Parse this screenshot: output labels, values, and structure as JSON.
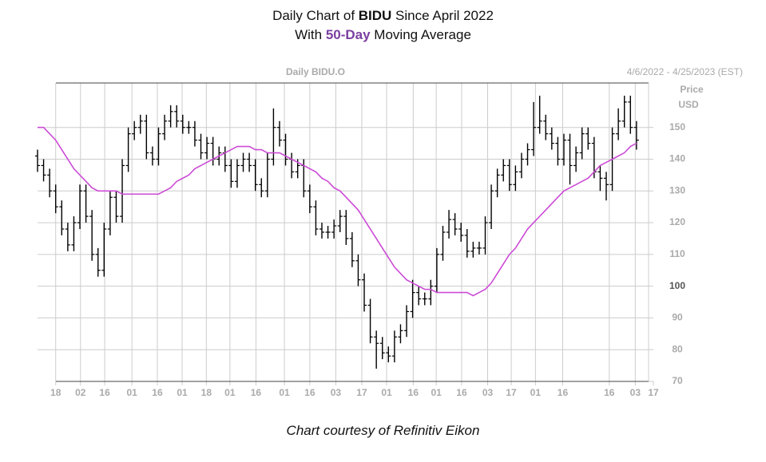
{
  "chart_data": {
    "type": "ohlc",
    "title": [
      "Daily Chart of ",
      "BIDU",
      " Since April 2022"
    ],
    "subtitle": [
      "With ",
      "50-Day",
      " Moving Average"
    ],
    "subtitle_highlight_color": "#7b3fa0",
    "panel_title": "Daily BIDU.O",
    "date_range": "4/6/2022 - 4/25/2023 (EST)",
    "y_label": [
      "Price",
      "USD"
    ],
    "footer": "Chart courtesy of Refinitiv Eikon",
    "xlim": [
      0,
      101
    ],
    "xticks": [
      {
        "value": 3.0,
        "label": "18"
      },
      {
        "value": 7.1,
        "label": "02"
      },
      {
        "value": 11.1,
        "label": "16"
      },
      {
        "value": 15.6,
        "label": "01"
      },
      {
        "value": 19.8,
        "label": "16"
      },
      {
        "value": 23.9,
        "label": "01"
      },
      {
        "value": 27.9,
        "label": "18"
      },
      {
        "value": 31.8,
        "label": "01"
      },
      {
        "value": 36.1,
        "label": "16"
      },
      {
        "value": 40.8,
        "label": "01"
      },
      {
        "value": 45.0,
        "label": "16"
      },
      {
        "value": 49.3,
        "label": "03"
      },
      {
        "value": 53.6,
        "label": "17"
      },
      {
        "value": 57.7,
        "label": "01"
      },
      {
        "value": 62.1,
        "label": "16"
      },
      {
        "value": 65.9,
        "label": "01"
      },
      {
        "value": 70.1,
        "label": "16"
      },
      {
        "value": 74.4,
        "label": "03"
      },
      {
        "value": 78.3,
        "label": "17"
      },
      {
        "value": 82.3,
        "label": "01"
      },
      {
        "value": 86.8,
        "label": "16"
      },
      {
        "value": 94.5,
        "label": "16"
      },
      {
        "value": 98.8,
        "label": "03"
      },
      {
        "value": 101.8,
        "label": "17"
      }
    ],
    "ylim": [
      70,
      164
    ],
    "yticks": [
      70,
      80,
      90,
      100,
      110,
      120,
      130,
      140,
      150
    ],
    "grid": true,
    "series": [
      {
        "type": "ohlc",
        "color": "#000000",
        "open": [
          141,
          138,
          135,
          130,
          125,
          118,
          113,
          120,
          130,
          122,
          110,
          105,
          118,
          128,
          122,
          138,
          148,
          150,
          152,
          142,
          140,
          148,
          152,
          155,
          152,
          150,
          150,
          146,
          142,
          145,
          140,
          142,
          138,
          133,
          138,
          140,
          138,
          132,
          130,
          140,
          150,
          146,
          140,
          136,
          138,
          130,
          125,
          118,
          117,
          117,
          119,
          122,
          115,
          108,
          102,
          94,
          84,
          82,
          79,
          78,
          84,
          86,
          92,
          98,
          96,
          96,
          100,
          110,
          117,
          121,
          118,
          116,
          111,
          112,
          112,
          120,
          130,
          135,
          138,
          132,
          136,
          140,
          143,
          150,
          152,
          148,
          145,
          140,
          146,
          138,
          142,
          148,
          145,
          136,
          134,
          132,
          148,
          152,
          158,
          150
        ],
        "high": [
          143,
          140,
          137,
          132,
          127,
          120,
          122,
          132,
          132,
          124,
          112,
          120,
          130,
          130,
          140,
          150,
          152,
          154,
          154,
          144,
          150,
          154,
          157,
          157,
          154,
          152,
          152,
          148,
          147,
          147,
          144,
          144,
          140,
          140,
          142,
          142,
          140,
          134,
          142,
          156,
          152,
          148,
          142,
          140,
          140,
          132,
          127,
          120,
          119,
          121,
          124,
          124,
          117,
          110,
          104,
          96,
          86,
          84,
          81,
          86,
          88,
          94,
          102,
          100,
          98,
          102,
          112,
          119,
          124,
          123,
          120,
          118,
          114,
          114,
          122,
          132,
          137,
          140,
          140,
          138,
          142,
          145,
          158,
          160,
          154,
          150,
          147,
          148,
          148,
          144,
          150,
          150,
          147,
          138,
          136,
          150,
          156,
          160,
          160,
          152
        ],
        "low": [
          136,
          133,
          128,
          123,
          116,
          111,
          111,
          118,
          120,
          108,
          103,
          103,
          116,
          120,
          120,
          136,
          146,
          148,
          140,
          138,
          138,
          146,
          150,
          150,
          148,
          148,
          144,
          140,
          140,
          138,
          138,
          136,
          131,
          131,
          136,
          136,
          130,
          128,
          128,
          138,
          144,
          138,
          134,
          134,
          128,
          123,
          116,
          115,
          115,
          115,
          117,
          113,
          106,
          100,
          92,
          82,
          74,
          77,
          76,
          76,
          82,
          84,
          90,
          94,
          94,
          94,
          98,
          108,
          115,
          116,
          114,
          109,
          109,
          110,
          110,
          118,
          128,
          133,
          130,
          130,
          134,
          138,
          141,
          148,
          146,
          143,
          138,
          138,
          132,
          136,
          140,
          143,
          134,
          130,
          127,
          130,
          146,
          150,
          148,
          143
        ],
        "close": [
          138,
          135,
          130,
          125,
          118,
          113,
          120,
          130,
          122,
          110,
          105,
          118,
          128,
          122,
          138,
          148,
          150,
          152,
          142,
          140,
          148,
          152,
          155,
          152,
          150,
          150,
          146,
          142,
          145,
          140,
          142,
          138,
          133,
          138,
          140,
          138,
          132,
          130,
          140,
          150,
          146,
          140,
          136,
          138,
          130,
          125,
          118,
          117,
          117,
          119,
          122,
          115,
          108,
          102,
          94,
          84,
          82,
          79,
          78,
          84,
          86,
          92,
          98,
          96,
          96,
          100,
          110,
          117,
          121,
          118,
          116,
          111,
          112,
          112,
          120,
          130,
          135,
          138,
          132,
          136,
          140,
          143,
          150,
          152,
          148,
          145,
          140,
          146,
          138,
          142,
          148,
          145,
          136,
          134,
          132,
          148,
          152,
          158,
          150,
          146
        ]
      },
      {
        "type": "line",
        "color": "#cc4bd6",
        "values": [
          150,
          150,
          148,
          146,
          143,
          140,
          137,
          135,
          133,
          131,
          130,
          130,
          130,
          130,
          129,
          129,
          129,
          129,
          129,
          129,
          129,
          130,
          131,
          133,
          134,
          135,
          137,
          138,
          139,
          140,
          141,
          142,
          143,
          144,
          144,
          144,
          143,
          143,
          142,
          142,
          142,
          141,
          140,
          139,
          138,
          137,
          136,
          134,
          133,
          131,
          130,
          128,
          126,
          124,
          121,
          118,
          115,
          112,
          109,
          106,
          104,
          102,
          101,
          100,
          99,
          99,
          98,
          98,
          98,
          98,
          98,
          98,
          97,
          98,
          99,
          101,
          104,
          107,
          110,
          112,
          115,
          118,
          120,
          122,
          124,
          126,
          128,
          130,
          131,
          132,
          133,
          134,
          136,
          138,
          139,
          140,
          141,
          142,
          144,
          145
        ]
      }
    ]
  }
}
